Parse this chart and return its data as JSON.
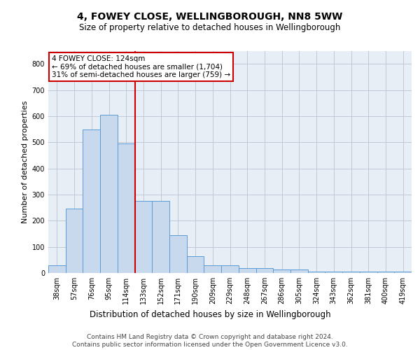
{
  "title_line1": "4, FOWEY CLOSE, WELLINGBOROUGH, NN8 5WW",
  "title_line2": "Size of property relative to detached houses in Wellingborough",
  "xlabel": "Distribution of detached houses by size in Wellingborough",
  "ylabel": "Number of detached properties",
  "categories": [
    "38sqm",
    "57sqm",
    "76sqm",
    "95sqm",
    "114sqm",
    "133sqm",
    "152sqm",
    "171sqm",
    "190sqm",
    "209sqm",
    "229sqm",
    "248sqm",
    "267sqm",
    "286sqm",
    "305sqm",
    "324sqm",
    "343sqm",
    "362sqm",
    "381sqm",
    "400sqm",
    "419sqm"
  ],
  "values": [
    30,
    247,
    549,
    604,
    495,
    277,
    277,
    145,
    63,
    30,
    30,
    18,
    18,
    13,
    13,
    5,
    5,
    5,
    5,
    5,
    5
  ],
  "bar_color": "#c8d9ed",
  "bar_edge_color": "#5b9bd5",
  "vline_x_index": 4,
  "annotation_text": "4 FOWEY CLOSE: 124sqm\n← 69% of detached houses are smaller (1,704)\n31% of semi-detached houses are larger (759) →",
  "annotation_box_color": "#ffffff",
  "annotation_box_edge": "#cc0000",
  "vline_color": "#cc0000",
  "footnote": "Contains HM Land Registry data © Crown copyright and database right 2024.\nContains public sector information licensed under the Open Government Licence v3.0.",
  "ylim": [
    0,
    850
  ],
  "yticks": [
    0,
    100,
    200,
    300,
    400,
    500,
    600,
    700,
    800
  ],
  "grid_color": "#c0c8d8",
  "bg_color": "#e8eef5",
  "title1_fontsize": 10,
  "title2_fontsize": 8.5,
  "ylabel_fontsize": 8,
  "xlabel_fontsize": 8.5,
  "footnote_fontsize": 6.5,
  "tick_fontsize": 7,
  "annotation_fontsize": 7.5
}
